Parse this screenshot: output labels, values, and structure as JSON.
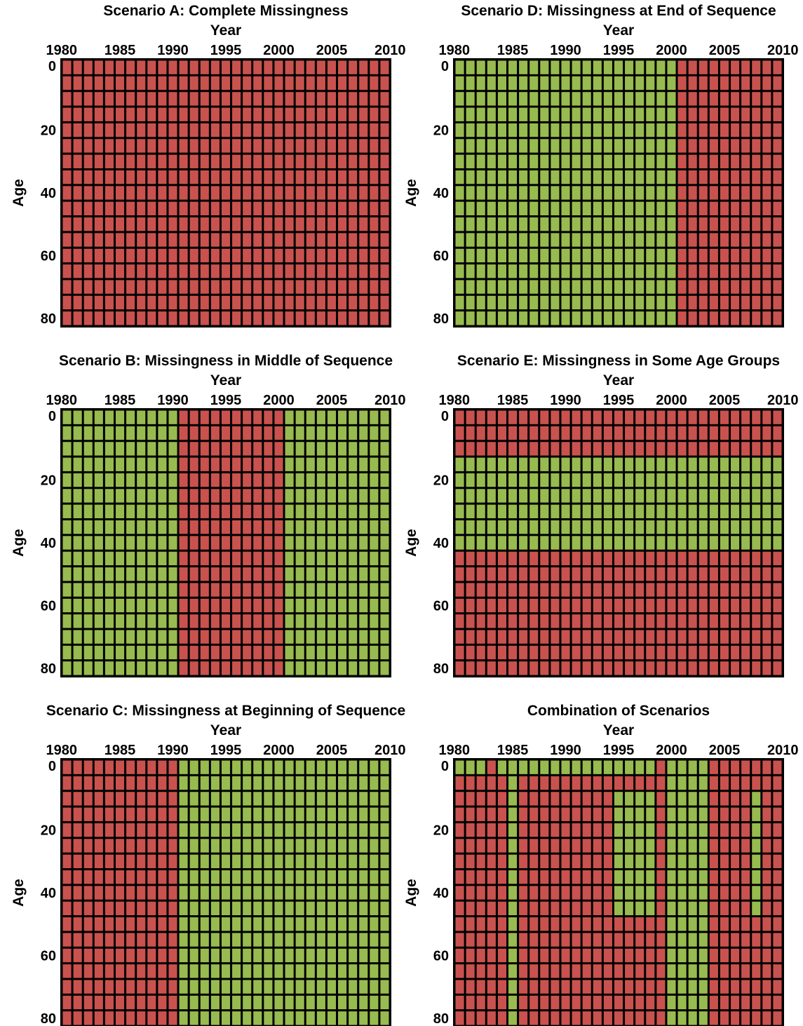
{
  "colors": {
    "missing": "#c9524f",
    "observed": "#98bb4f",
    "grid": "#000000"
  },
  "grid_size": {
    "years": 31,
    "age_groups": 17
  },
  "chart_data": [
    {
      "type": "heatmap",
      "title": "Scenario A: Complete Missingness",
      "xlabel": "Year",
      "ylabel": "Age",
      "xlim": [
        1980,
        2010
      ],
      "ylim": [
        0,
        80
      ],
      "xticks": [
        "1980",
        "1985",
        "1990",
        "1995",
        "2000",
        "2005",
        "2010"
      ],
      "yticks": [
        "0",
        "20",
        "40",
        "60",
        "80"
      ],
      "missing_blocks": [
        {
          "years": [
            1980,
            2010
          ],
          "ages": [
            0,
            80
          ]
        }
      ]
    },
    {
      "type": "heatmap",
      "title": "Scenario D: Missingness at End of Sequence",
      "xlabel": "Year",
      "ylabel": "Age",
      "xlim": [
        1980,
        2010
      ],
      "ylim": [
        0,
        80
      ],
      "xticks": [
        "1980",
        "1985",
        "1990",
        "1995",
        "2000",
        "2005",
        "2010"
      ],
      "yticks": [
        "0",
        "20",
        "40",
        "60",
        "80"
      ],
      "missing_blocks": [
        {
          "years": [
            2001,
            2010
          ],
          "ages": [
            0,
            80
          ]
        }
      ]
    },
    {
      "type": "heatmap",
      "title": "Scenario B: Missingness in Middle of Sequence",
      "xlabel": "Year",
      "ylabel": "Age",
      "xlim": [
        1980,
        2010
      ],
      "ylim": [
        0,
        80
      ],
      "xticks": [
        "1980",
        "1985",
        "1990",
        "1995",
        "2000",
        "2005",
        "2010"
      ],
      "yticks": [
        "0",
        "20",
        "40",
        "60",
        "80"
      ],
      "missing_blocks": [
        {
          "years": [
            1991,
            2000
          ],
          "ages": [
            0,
            80
          ]
        }
      ]
    },
    {
      "type": "heatmap",
      "title": "Scenario E: Missingness in Some Age Groups",
      "xlabel": "Year",
      "ylabel": "Age",
      "xlim": [
        1980,
        2010
      ],
      "ylim": [
        0,
        80
      ],
      "xticks": [
        "1980",
        "1985",
        "1990",
        "1995",
        "2000",
        "2005",
        "2010"
      ],
      "yticks": [
        "0",
        "20",
        "40",
        "60",
        "80"
      ],
      "missing_blocks": [
        {
          "years": [
            1980,
            2010
          ],
          "ages": [
            0,
            10
          ]
        },
        {
          "years": [
            1980,
            2010
          ],
          "ages": [
            45,
            80
          ]
        }
      ]
    },
    {
      "type": "heatmap",
      "title": "Scenario C: Missingness at Beginning of Sequence",
      "xlabel": "Year",
      "ylabel": "Age",
      "xlim": [
        1980,
        2010
      ],
      "ylim": [
        0,
        80
      ],
      "xticks": [
        "1980",
        "1985",
        "1990",
        "1995",
        "2000",
        "2005",
        "2010"
      ],
      "yticks": [
        "0",
        "20",
        "40",
        "60",
        "80"
      ],
      "missing_blocks": [
        {
          "years": [
            1980,
            1990
          ],
          "ages": [
            0,
            80
          ]
        }
      ]
    },
    {
      "type": "heatmap",
      "title": "Combination of Scenarios",
      "xlabel": "Year",
      "ylabel": "Age",
      "xlim": [
        1980,
        2010
      ],
      "ylim": [
        0,
        80
      ],
      "xticks": [
        "1980",
        "1985",
        "1990",
        "1995",
        "2000",
        "2005",
        "2010"
      ],
      "yticks": [
        "0",
        "20",
        "40",
        "60",
        "80"
      ],
      "missing_blocks": [
        {
          "years": [
            1983,
            1983
          ],
          "ages": [
            0,
            0
          ]
        },
        {
          "years": [
            1999,
            1999
          ],
          "ages": [
            0,
            0
          ]
        },
        {
          "years": [
            2004,
            2010
          ],
          "ages": [
            0,
            0
          ]
        },
        {
          "years": [
            1980,
            2010
          ],
          "ages": [
            5,
            80
          ]
        }
      ],
      "observed_blocks": [
        {
          "years": [
            1985,
            1985
          ],
          "ages": [
            5,
            80
          ]
        },
        {
          "years": [
            1995,
            1998
          ],
          "ages": [
            10,
            45
          ]
        },
        {
          "years": [
            2000,
            2003
          ],
          "ages": [
            5,
            80
          ]
        },
        {
          "years": [
            2008,
            2008
          ],
          "ages": [
            10,
            45
          ]
        }
      ]
    }
  ]
}
